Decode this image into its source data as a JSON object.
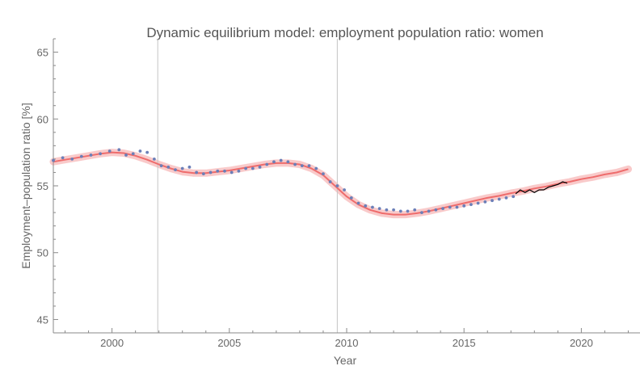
{
  "chart_data": {
    "type": "line",
    "title": "Dynamic equilibrium model: employment population ratio: women",
    "xlabel": "Year",
    "ylabel": "Employment–population ratio [%]",
    "xlim": [
      1997.5,
      2022.5
    ],
    "ylim": [
      44.0,
      66.0
    ],
    "x_ticks": [
      2000,
      2005,
      2010,
      2015,
      2020
    ],
    "y_ticks": [
      45,
      50,
      55,
      60,
      65
    ],
    "vertical_markers": [
      2001.95,
      2009.6
    ],
    "colors": {
      "data_points": "#6b7fb8",
      "model": "#ee6c6c",
      "model_band": "#f8c4c4",
      "post_forecast": "#000000",
      "axes": "#8a8a8a",
      "markers": "#c4c4c4"
    },
    "series": [
      {
        "kind": "model",
        "x": [
          1997.5,
          1998.0,
          1998.5,
          1999.0,
          1999.5,
          2000.0,
          2000.5,
          2001.0,
          2001.5,
          2002.0,
          2002.5,
          2003.0,
          2003.5,
          2004.0,
          2004.5,
          2005.0,
          2005.5,
          2006.0,
          2006.5,
          2007.0,
          2007.5,
          2008.0,
          2008.5,
          2009.0,
          2009.5,
          2010.0,
          2010.5,
          2011.0,
          2011.5,
          2012.0,
          2012.5,
          2013.0,
          2013.5,
          2014.0,
          2014.5,
          2015.0,
          2015.5,
          2016.0,
          2016.5,
          2017.0,
          2017.5,
          2018.0,
          2018.5,
          2019.0,
          2019.5,
          2020.0,
          2020.5,
          2021.0,
          2021.5,
          2022.0
        ],
        "y": [
          56.8,
          56.95,
          57.1,
          57.25,
          57.4,
          57.5,
          57.45,
          57.25,
          56.95,
          56.6,
          56.3,
          56.05,
          55.95,
          55.95,
          56.05,
          56.15,
          56.3,
          56.45,
          56.6,
          56.7,
          56.7,
          56.6,
          56.3,
          55.8,
          55.0,
          54.2,
          53.6,
          53.2,
          52.95,
          52.85,
          52.85,
          52.95,
          53.1,
          53.3,
          53.5,
          53.7,
          53.9,
          54.1,
          54.25,
          54.45,
          54.6,
          54.8,
          54.95,
          55.15,
          55.3,
          55.5,
          55.65,
          55.85,
          56.0,
          56.25
        ]
      },
      {
        "kind": "data",
        "x": [
          1997.5,
          1997.9,
          1998.3,
          1998.7,
          1999.1,
          1999.5,
          1999.9,
          2000.3,
          2000.6,
          2000.9,
          2001.2,
          2001.5,
          2001.8,
          2002.1,
          2002.4,
          2002.7,
          2003.0,
          2003.3,
          2003.6,
          2003.9,
          2004.2,
          2004.5,
          2004.8,
          2005.1,
          2005.4,
          2005.7,
          2006.0,
          2006.3,
          2006.6,
          2006.9,
          2007.2,
          2007.5,
          2007.8,
          2008.1,
          2008.4,
          2008.7,
          2009.0,
          2009.3,
          2009.6,
          2009.9,
          2010.2,
          2010.5,
          2010.8,
          2011.1,
          2011.4,
          2011.7,
          2012.0,
          2012.3,
          2012.6,
          2012.9,
          2013.2,
          2013.5,
          2013.8,
          2014.1,
          2014.4,
          2014.7,
          2015.0,
          2015.3,
          2015.6,
          2015.9,
          2016.2,
          2016.5,
          2016.8,
          2017.1
        ],
        "y": [
          56.9,
          57.1,
          57.0,
          57.2,
          57.3,
          57.4,
          57.6,
          57.7,
          57.3,
          57.4,
          57.6,
          57.5,
          57.0,
          56.5,
          56.4,
          56.2,
          56.3,
          56.4,
          56.0,
          55.9,
          56.0,
          56.1,
          56.1,
          56.0,
          56.1,
          56.3,
          56.3,
          56.4,
          56.6,
          56.8,
          56.9,
          56.8,
          56.6,
          56.5,
          56.5,
          56.3,
          55.9,
          55.3,
          55.0,
          54.7,
          54.1,
          53.7,
          53.5,
          53.4,
          53.3,
          53.2,
          53.2,
          53.1,
          53.1,
          53.2,
          53.0,
          53.1,
          53.2,
          53.3,
          53.4,
          53.4,
          53.5,
          53.6,
          53.7,
          53.8,
          53.9,
          54.0,
          54.1,
          54.2
        ]
      },
      {
        "kind": "post-forecast",
        "x": [
          2017.2,
          2017.4,
          2017.6,
          2017.8,
          2018.0,
          2018.2,
          2018.4,
          2018.6,
          2018.8,
          2019.0,
          2019.2,
          2019.4
        ],
        "y": [
          54.4,
          54.7,
          54.5,
          54.7,
          54.5,
          54.7,
          54.7,
          54.9,
          55.0,
          55.1,
          55.3,
          55.2
        ]
      }
    ]
  }
}
